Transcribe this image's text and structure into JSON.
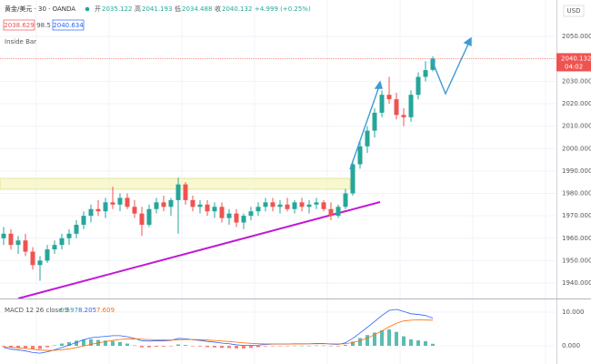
{
  "header": {
    "symbol": "黄金/美元 · 30 · OANDA",
    "open_label": "开",
    "high_label": "高",
    "low_label": "低",
    "close_label": "收",
    "change": "+4.999 (+0.25%)",
    "bid": "2038.629",
    "spread": "98.5",
    "ask": "2040.634",
    "indicator": "Inside Bar"
  },
  "chart_data": [
    {
      "type": "candlestick",
      "currency": "USD",
      "countdown": "04:02",
      "up_color": "#26a69a",
      "down_color": "#ef5350",
      "grid": true,
      "open": [
        1960,
        1962,
        1957,
        1959,
        1954,
        1948,
        1950,
        1955,
        1957,
        1960,
        1962,
        1966,
        1970,
        1973,
        1972,
        1976,
        1975,
        1978,
        1974,
        1971,
        1966,
        1973,
        1976,
        1974,
        1977,
        1984,
        1977,
        1974,
        1975,
        1972,
        1974,
        1969,
        1971,
        1967,
        1970,
        1972,
        1974,
        1976,
        1974,
        1975,
        1973,
        1976,
        1974,
        1975,
        1976,
        1973,
        1970,
        1974,
        1980,
        1993,
        2001,
        2008,
        2016,
        2024,
        2022,
        2015,
        2014,
        2024,
        2032,
        2035.122
      ],
      "high": [
        1965,
        1964,
        1961,
        1962,
        1956,
        1952,
        1957,
        1959,
        1962,
        1964,
        1968,
        1972,
        1975,
        1977,
        1978,
        1983,
        1980,
        1980,
        1977,
        1974,
        1975,
        1978,
        1979,
        1978,
        1987,
        1985,
        1979,
        1977,
        1977,
        1976,
        1976,
        1973,
        1973,
        1971,
        1974,
        1976,
        1978,
        1978,
        1977,
        1978,
        1977,
        1978,
        1977,
        1978,
        1977,
        1976,
        1975,
        1982,
        1995,
        2003,
        2010,
        2018,
        2026,
        2032,
        2025,
        2018,
        2026,
        2034,
        2039,
        2041.193
      ],
      "low": [
        1957,
        1955,
        1953,
        1952,
        1946,
        1941,
        1949,
        1953,
        1955,
        1957,
        1960,
        1964,
        1967,
        1970,
        1969,
        1973,
        1972,
        1973,
        1969,
        1961,
        1965,
        1971,
        1972,
        1970,
        1962,
        1975,
        1972,
        1971,
        1970,
        1969,
        1967,
        1966,
        1965,
        1964,
        1968,
        1970,
        1972,
        1972,
        1971,
        1972,
        1971,
        1972,
        1971,
        1973,
        1972,
        1968,
        1969,
        1973,
        1979,
        1991,
        1998,
        2005,
        2014,
        2020,
        2013,
        2010,
        2012,
        2022,
        2030,
        2034.488
      ],
      "close": [
        1962,
        1957,
        1959,
        1954,
        1948,
        1950,
        1955,
        1957,
        1960,
        1962,
        1966,
        1970,
        1973,
        1972,
        1976,
        1975,
        1978,
        1974,
        1971,
        1966,
        1973,
        1976,
        1974,
        1977,
        1984,
        1977,
        1974,
        1975,
        1972,
        1974,
        1969,
        1971,
        1967,
        1970,
        1972,
        1974,
        1976,
        1974,
        1975,
        1973,
        1976,
        1974,
        1975,
        1976,
        1973,
        1970,
        1974,
        1980,
        1993,
        2001,
        2008,
        2016,
        2024,
        2022,
        2015,
        2014,
        2024,
        2032,
        2035,
        2040.132
      ],
      "ylim": [
        1933.1,
        2066.3
      ],
      "yticks": [
        {
          "value": 1940,
          "label": "1940.000"
        },
        {
          "value": 1950,
          "label": "1950.000"
        },
        {
          "value": 1960,
          "label": "1960.000"
        },
        {
          "value": 1970,
          "label": "1970.000"
        },
        {
          "value": 1980,
          "label": "1980.000"
        },
        {
          "value": 1990,
          "label": "1990.000"
        },
        {
          "value": 2000,
          "label": "2000.000"
        },
        {
          "value": 2010,
          "label": "2010.000"
        },
        {
          "value": 2020,
          "label": "2020.000"
        },
        {
          "value": 2030,
          "label": "2030.000"
        },
        {
          "value": 2050,
          "label": "2050.000"
        }
      ]
    },
    {
      "type": "macd",
      "title": "MACD 12 26 close 9",
      "macd_color": "#2962ff",
      "signal_color": "#ff6d00",
      "hist_up_color": "#26a69a",
      "hist_down_color": "#ef5350",
      "macd": [
        -0.5,
        -1,
        -1.2,
        -1.5,
        -2,
        -2.2,
        -1.8,
        -1.2,
        -0.5,
        0.2,
        1,
        1.8,
        2.4,
        2.6,
        2.8,
        3,
        3,
        2.7,
        2.2,
        1.5,
        1.4,
        1.5,
        1.5,
        1.6,
        2.2,
        2.1,
        1.8,
        1.6,
        1.3,
        1.1,
        0.8,
        0.6,
        0.3,
        0.1,
        0.1,
        0.2,
        0.4,
        0.5,
        0.5,
        0.5,
        0.6,
        0.6,
        0.6,
        0.7,
        0.7,
        0.5,
        0.4,
        0.9,
        2.2,
        3.8,
        5.5,
        7.2,
        9,
        10.5,
        10.8,
        10.2,
        9.5,
        9.3,
        9.0,
        8.205
      ],
      "signal": [
        -0.3,
        -0.44,
        -0.59,
        -0.77,
        -1.02,
        -1.26,
        -1.37,
        -1.34,
        -1.17,
        -0.9,
        -0.52,
        -0.06,
        0.43,
        0.86,
        1.25,
        1.6,
        1.88,
        2.04,
        2.07,
        1.96,
        1.85,
        1.78,
        1.72,
        1.7,
        1.8,
        1.86,
        1.85,
        1.8,
        1.7,
        1.58,
        1.42,
        1.26,
        1.07,
        0.88,
        0.72,
        0.62,
        0.58,
        0.56,
        0.55,
        0.54,
        0.55,
        0.56,
        0.57,
        0.6,
        0.62,
        0.6,
        0.56,
        0.63,
        0.94,
        1.51,
        2.31,
        3.29,
        4.43,
        5.64,
        6.67,
        7.38,
        7.6,
        7.7,
        7.65,
        7.609
      ],
      "histogram": [
        -0.2,
        -0.56,
        -0.61,
        -0.73,
        -0.98,
        -0.94,
        -0.43,
        0.14,
        0.67,
        1.1,
        1.52,
        1.86,
        1.97,
        1.74,
        1.55,
        1.4,
        1.12,
        0.66,
        0.13,
        -0.46,
        -0.45,
        -0.28,
        -0.22,
        -0.1,
        0.4,
        0.24,
        -0.05,
        -0.2,
        -0.4,
        -0.48,
        -0.62,
        -0.66,
        -0.77,
        -0.78,
        -0.62,
        -0.42,
        -0.18,
        -0.06,
        -0.05,
        -0.04,
        0.05,
        0.04,
        0.03,
        0.1,
        0.08,
        -0.1,
        -0.16,
        0.27,
        1.26,
        2.29,
        3.19,
        3.91,
        4.57,
        4.86,
        4.13,
        2.82,
        1.9,
        1.6,
        1.35,
        0.597
      ],
      "ylim": [
        -5.4,
        13.5
      ],
      "yticks": [
        {
          "value": 0,
          "label": "0.000"
        },
        {
          "value": 10,
          "label": "10.000"
        }
      ]
    }
  ]
}
